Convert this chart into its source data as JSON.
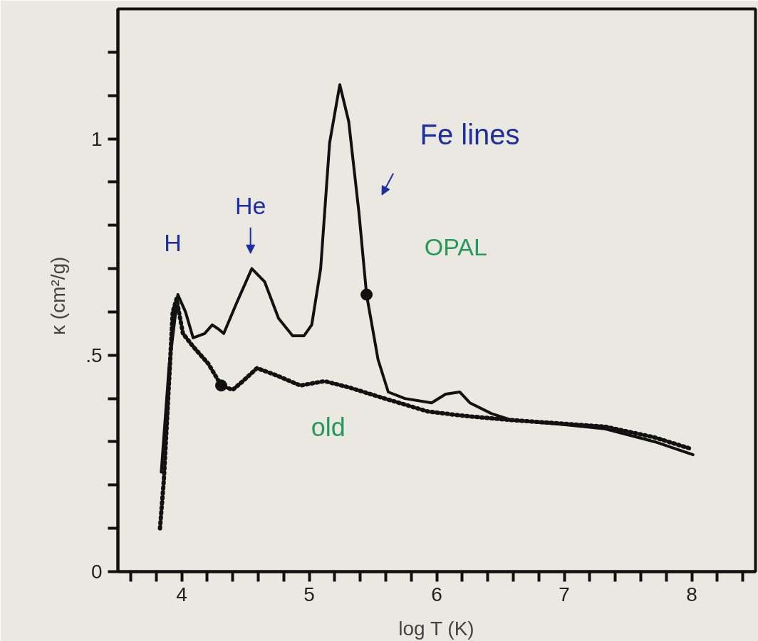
{
  "chart_data": {
    "type": "line",
    "xlabel": "log T (K)",
    "ylabel": "κ   (cm²/g)",
    "xlim": [
      3.5,
      8.5
    ],
    "ylim": [
      0,
      1.3
    ],
    "xticks": [
      {
        "value": 3.6,
        "label": null
      },
      {
        "value": 3.8,
        "label": null
      },
      4,
      {
        "value": 4.2,
        "label": null
      },
      {
        "value": 4.4,
        "label": null
      },
      {
        "value": 4.6,
        "label": null
      },
      {
        "value": 4.8,
        "label": null
      },
      5,
      {
        "value": 5.2,
        "label": null
      },
      {
        "value": 5.4,
        "label": null
      },
      {
        "value": 5.6,
        "label": null
      },
      {
        "value": 5.8,
        "label": null
      },
      6,
      {
        "value": 6.2,
        "label": null
      },
      {
        "value": 6.4,
        "label": null
      },
      {
        "value": 6.6,
        "label": null
      },
      {
        "value": 6.8,
        "label": null
      },
      7,
      {
        "value": 7.2,
        "label": null
      },
      {
        "value": 7.4,
        "label": null
      },
      {
        "value": 7.6,
        "label": null
      },
      {
        "value": 7.8,
        "label": null
      },
      8,
      {
        "value": 8.2,
        "label": null
      },
      {
        "value": 8.4,
        "label": null
      }
    ],
    "yticks": [
      0,
      {
        "value": 0.1,
        "label": null
      },
      {
        "value": 0.2,
        "label": null
      },
      {
        "value": 0.3,
        "label": null
      },
      {
        "value": 0.4,
        "label": null
      },
      {
        "value": 0.5,
        "label": ".5"
      },
      {
        "value": 0.6,
        "label": null
      },
      {
        "value": 0.7,
        "label": null
      },
      {
        "value": 0.8,
        "label": null
      },
      {
        "value": 0.9,
        "label": null
      },
      1,
      {
        "value": 1.1,
        "label": null
      },
      {
        "value": 1.2,
        "label": null
      }
    ],
    "grid": false,
    "marker": "none",
    "series": [
      {
        "color": "#111111",
        "line_style": "solid",
        "x": [
          3.84,
          3.9,
          3.97,
          4.03,
          4.09,
          4.18,
          4.24,
          4.29,
          4.33,
          4.43,
          4.55,
          4.65,
          4.76,
          4.87,
          4.96,
          5.02,
          5.09,
          5.16,
          5.24,
          5.31,
          5.39,
          5.45,
          5.54,
          5.62,
          5.75,
          5.96,
          6.07,
          6.18,
          6.26,
          6.43,
          6.59,
          6.98,
          7.32,
          7.71,
          8.01
        ],
        "values": [
          0.23,
          0.47,
          0.64,
          0.6,
          0.54,
          0.55,
          0.57,
          0.56,
          0.55,
          0.62,
          0.7,
          0.67,
          0.585,
          0.545,
          0.545,
          0.57,
          0.7,
          0.99,
          1.125,
          1.04,
          0.83,
          0.64,
          0.49,
          0.415,
          0.4,
          0.39,
          0.41,
          0.415,
          0.39,
          0.365,
          0.35,
          0.34,
          0.33,
          0.3,
          0.27
        ]
      },
      {
        "color": "#111111",
        "line_style": "dotted",
        "x": [
          3.83,
          3.86,
          3.93,
          3.96,
          4.01,
          4.09,
          4.21,
          4.31,
          4.4,
          4.48,
          4.59,
          4.73,
          4.93,
          5.12,
          5.32,
          5.59,
          5.93,
          6.21,
          6.59,
          7.32,
          7.71,
          7.98
        ],
        "values": [
          0.1,
          0.21,
          0.6,
          0.63,
          0.55,
          0.52,
          0.48,
          0.43,
          0.42,
          0.44,
          0.47,
          0.455,
          0.43,
          0.44,
          0.425,
          0.4,
          0.37,
          0.36,
          0.35,
          0.335,
          0.31,
          0.285
        ]
      },
      {
        "type": "scatter",
        "marker": "circle",
        "color": "#111111",
        "x": [
          4.31,
          5.45
        ],
        "values": [
          0.43,
          0.64
        ]
      }
    ],
    "annotations": [
      "H",
      "He",
      "Fe lines",
      "OPAL",
      "old"
    ]
  }
}
